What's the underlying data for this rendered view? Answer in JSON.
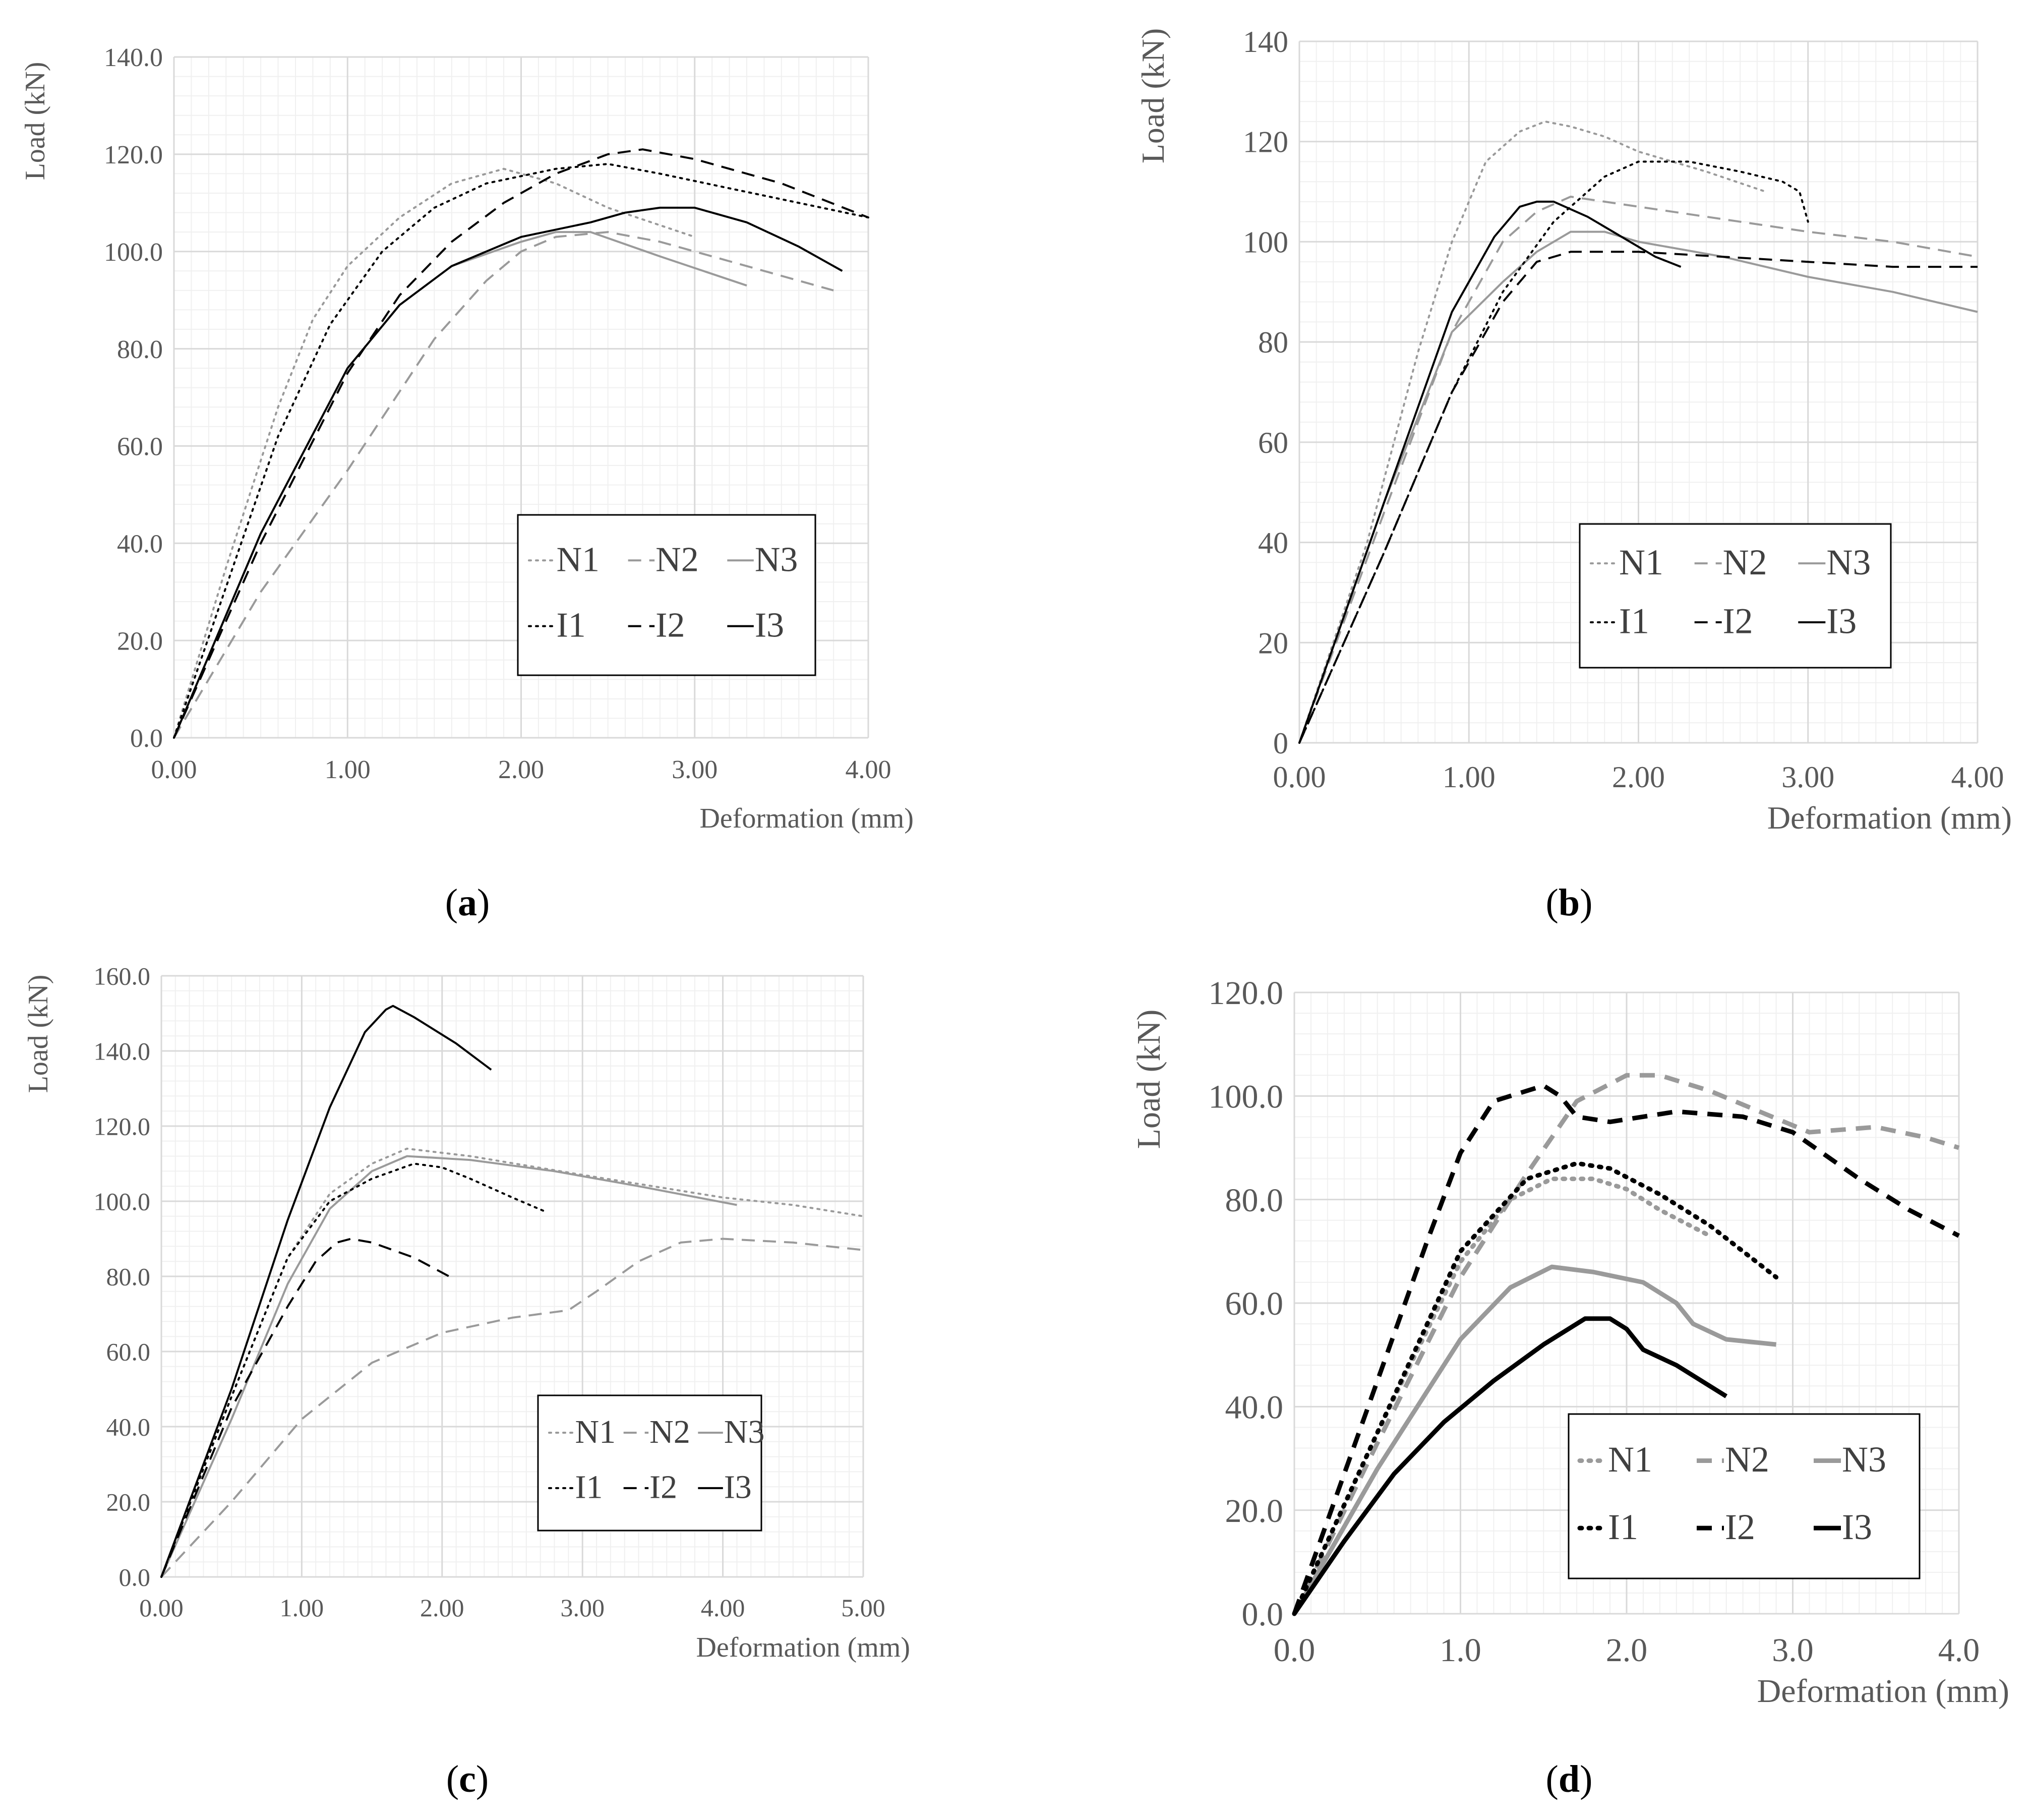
{
  "figure_labels": {
    "a": {
      "open": "(",
      "letter": "a",
      "close": ")"
    },
    "b": {
      "open": "(",
      "letter": "b",
      "close": ")"
    },
    "c": {
      "open": "(",
      "letter": "c",
      "close": ")"
    },
    "d": {
      "open": "(",
      "letter": "d",
      "close": ")"
    }
  },
  "colors": {
    "black": "#000000",
    "gray": "#9a9a9a",
    "axis": "#d9d9d9",
    "grid": "#f0f0f0",
    "text": "#595959"
  },
  "chart_data": [
    {
      "id": "a",
      "type": "line",
      "xlabel": "Deformation (mm)",
      "ylabel": "Load (kN)",
      "xlim": [
        0,
        4
      ],
      "ylim": [
        0,
        140
      ],
      "xticks": [
        0,
        1,
        2,
        3,
        4
      ],
      "xtick_labels": [
        "0.00",
        "1.00",
        "2.00",
        "3.00",
        "4.00"
      ],
      "yticks": [
        0,
        20,
        40,
        60,
        80,
        100,
        120,
        140
      ],
      "ytick_labels": [
        "0.0",
        "20.0",
        "40.0",
        "60.0",
        "80.0",
        "100.0",
        "120.0",
        "140.0"
      ],
      "legend_position": "lower-right",
      "series": [
        {
          "name": "N1",
          "style": "dotted",
          "color": "gray",
          "x": [
            0,
            0.3,
            0.6,
            0.8,
            1.0,
            1.3,
            1.6,
            1.9,
            2.0,
            2.2,
            2.5,
            3.0
          ],
          "y": [
            0,
            35,
            68,
            86,
            97,
            107,
            114,
            117,
            116,
            114,
            109,
            103
          ]
        },
        {
          "name": "N2",
          "style": "dashed",
          "color": "gray",
          "x": [
            0,
            0.5,
            1.0,
            1.5,
            1.8,
            2.0,
            2.2,
            2.5,
            2.8,
            3.2,
            3.8
          ],
          "y": [
            0,
            30,
            55,
            82,
            94,
            100,
            103,
            104,
            102,
            98,
            92
          ]
        },
        {
          "name": "N3",
          "style": "solid",
          "color": "gray",
          "x": [
            0,
            0.5,
            1.0,
            1.3,
            1.6,
            2.0,
            2.2,
            2.4,
            2.8,
            3.3
          ],
          "y": [
            0,
            42,
            76,
            89,
            97,
            102,
            104,
            104,
            99,
            93
          ]
        },
        {
          "name": "I1",
          "style": "dotted",
          "color": "black",
          "x": [
            0,
            0.3,
            0.6,
            0.9,
            1.2,
            1.5,
            1.8,
            2.2,
            2.5,
            2.8,
            3.2,
            3.6,
            4.0
          ],
          "y": [
            0,
            31,
            62,
            85,
            100,
            109,
            114,
            117,
            118,
            116,
            113,
            110,
            107
          ]
        },
        {
          "name": "I2",
          "style": "dashed",
          "color": "black",
          "x": [
            0,
            0.5,
            1.0,
            1.3,
            1.6,
            1.9,
            2.2,
            2.5,
            2.7,
            3.0,
            3.5,
            4.0
          ],
          "y": [
            0,
            40,
            75,
            91,
            102,
            110,
            116,
            120,
            121,
            119,
            114,
            107
          ]
        },
        {
          "name": "I3",
          "style": "solid",
          "color": "black",
          "x": [
            0,
            0.5,
            1.0,
            1.3,
            1.6,
            2.0,
            2.4,
            2.6,
            2.8,
            3.0,
            3.3,
            3.6,
            3.85
          ],
          "y": [
            0,
            42,
            76,
            89,
            97,
            103,
            106,
            108,
            109,
            109,
            106,
            101,
            96
          ]
        }
      ]
    },
    {
      "id": "b",
      "type": "line",
      "xlabel": "Deformation (mm)",
      "ylabel": "Load (kN)",
      "xlim": [
        0,
        4
      ],
      "ylim": [
        0,
        140
      ],
      "xticks": [
        0,
        1,
        2,
        3,
        4
      ],
      "xtick_labels": [
        "0.00",
        "1.00",
        "2.00",
        "3.00",
        "4.00"
      ],
      "yticks": [
        0,
        20,
        40,
        60,
        80,
        100,
        120,
        140
      ],
      "ytick_labels": [
        "0",
        "20",
        "40",
        "60",
        "80",
        "100",
        "120",
        "140"
      ],
      "legend_position": "lower-right",
      "series": [
        {
          "name": "N1",
          "style": "dotted",
          "color": "gray",
          "x": [
            0,
            0.4,
            0.7,
            0.9,
            1.1,
            1.3,
            1.45,
            1.6,
            1.8,
            2.0,
            2.4,
            2.75
          ],
          "y": [
            0,
            40,
            78,
            100,
            116,
            122,
            124,
            123,
            121,
            118,
            114,
            110
          ]
        },
        {
          "name": "N2",
          "style": "dashed",
          "color": "gray",
          "x": [
            0,
            0.5,
            0.9,
            1.2,
            1.4,
            1.6,
            1.8,
            2.2,
            2.6,
            3.0,
            3.5,
            4.0
          ],
          "y": [
            0,
            46,
            82,
            100,
            106,
            109,
            108,
            106,
            104,
            102,
            100,
            97
          ]
        },
        {
          "name": "N3",
          "style": "solid",
          "color": "gray",
          "x": [
            0,
            0.5,
            0.9,
            1.2,
            1.4,
            1.6,
            1.8,
            2.0,
            2.5,
            3.0,
            3.5,
            4.0
          ],
          "y": [
            0,
            48,
            82,
            92,
            98,
            102,
            102,
            100,
            97,
            93,
            90,
            86
          ]
        },
        {
          "name": "I1",
          "style": "dotted",
          "color": "black",
          "x": [
            0,
            0.5,
            0.9,
            1.2,
            1.5,
            1.8,
            2.0,
            2.3,
            2.6,
            2.85,
            2.95,
            3.0
          ],
          "y": [
            0,
            38,
            70,
            90,
            104,
            113,
            116,
            116,
            114,
            112,
            110,
            104
          ]
        },
        {
          "name": "I2",
          "style": "dashed",
          "color": "black",
          "x": [
            0,
            0.5,
            0.9,
            1.2,
            1.4,
            1.6,
            2.0,
            2.5,
            3.0,
            3.5,
            4.0
          ],
          "y": [
            0,
            38,
            70,
            88,
            96,
            98,
            98,
            97,
            96,
            95,
            95
          ]
        },
        {
          "name": "I3",
          "style": "solid",
          "color": "black",
          "x": [
            0,
            0.5,
            0.9,
            1.15,
            1.3,
            1.4,
            1.5,
            1.7,
            1.9,
            2.1,
            2.25
          ],
          "y": [
            0,
            48,
            86,
            101,
            107,
            108,
            108,
            105,
            101,
            97,
            95
          ]
        }
      ]
    },
    {
      "id": "c",
      "type": "line",
      "xlabel": "Deformation (mm)",
      "ylabel": "Load (kN)",
      "xlim": [
        0,
        5
      ],
      "ylim": [
        0,
        160
      ],
      "xticks": [
        0,
        1,
        2,
        3,
        4,
        5
      ],
      "xtick_labels": [
        "0.00",
        "1.00",
        "2.00",
        "3.00",
        "4.00",
        "5.00"
      ],
      "yticks": [
        0,
        20,
        40,
        60,
        80,
        100,
        120,
        140,
        160
      ],
      "ytick_labels": [
        "0.0",
        "20.0",
        "40.0",
        "60.0",
        "80.0",
        "100.0",
        "120.0",
        "140.0",
        "160.0"
      ],
      "legend_position": "lower-right",
      "series": [
        {
          "name": "N1",
          "style": "dotted",
          "color": "gray",
          "x": [
            0,
            0.5,
            0.9,
            1.2,
            1.5,
            1.75,
            2.2,
            3.0,
            3.5,
            4.0,
            4.5,
            5.0
          ],
          "y": [
            0,
            48,
            85,
            102,
            110,
            114,
            112,
            107,
            104,
            101,
            99,
            96
          ]
        },
        {
          "name": "N2",
          "style": "dashed",
          "color": "gray",
          "x": [
            0,
            0.5,
            1.0,
            1.5,
            2.0,
            2.5,
            2.9,
            3.1,
            3.4,
            3.7,
            4.0,
            4.5,
            5.0
          ],
          "y": [
            0,
            20,
            42,
            57,
            65,
            69,
            71,
            76,
            84,
            89,
            90,
            89,
            87
          ]
        },
        {
          "name": "N3",
          "style": "solid",
          "color": "gray",
          "x": [
            0,
            0.5,
            0.9,
            1.2,
            1.5,
            1.75,
            2.2,
            2.8,
            3.4,
            4.1
          ],
          "y": [
            0,
            42,
            78,
            98,
            108,
            112,
            111,
            108,
            104,
            99
          ]
        },
        {
          "name": "I1",
          "style": "dotted",
          "color": "black",
          "x": [
            0,
            0.5,
            0.9,
            1.2,
            1.5,
            1.8,
            2.0,
            2.2,
            2.5,
            2.75
          ],
          "y": [
            0,
            48,
            85,
            100,
            106,
            110,
            109,
            106,
            101,
            97
          ]
        },
        {
          "name": "I2",
          "style": "dashed",
          "color": "black",
          "x": [
            0,
            0.5,
            0.9,
            1.1,
            1.25,
            1.35,
            1.5,
            1.8,
            2.05
          ],
          "y": [
            0,
            45,
            72,
            84,
            89,
            90,
            89,
            85,
            80
          ]
        },
        {
          "name": "I3",
          "style": "solid",
          "color": "black",
          "x": [
            0,
            0.5,
            0.9,
            1.2,
            1.45,
            1.6,
            1.65,
            1.8,
            2.1,
            2.35
          ],
          "y": [
            0,
            50,
            95,
            125,
            145,
            151,
            152,
            149,
            142,
            135
          ]
        }
      ]
    },
    {
      "id": "d",
      "type": "line",
      "xlabel": "Deformation (mm)",
      "ylabel": "Load (kN)",
      "xlim": [
        0,
        4
      ],
      "ylim": [
        0,
        120
      ],
      "xticks": [
        0,
        1,
        2,
        3,
        4
      ],
      "xtick_labels": [
        "0.0",
        "1.0",
        "2.0",
        "3.0",
        "4.0"
      ],
      "yticks": [
        0,
        20,
        40,
        60,
        80,
        100,
        120
      ],
      "ytick_labels": [
        "0.0",
        "20.0",
        "40.0",
        "60.0",
        "80.0",
        "100.0",
        "120.0"
      ],
      "legend_position": "lower-right",
      "series": [
        {
          "name": "N1",
          "style": "dotted",
          "color": "gray",
          "x": [
            0,
            0.5,
            1.0,
            1.3,
            1.55,
            1.8,
            2.0,
            2.2,
            2.5
          ],
          "y": [
            0,
            35,
            68,
            80,
            84,
            84,
            82,
            78,
            73
          ]
        },
        {
          "name": "N2",
          "style": "dashed",
          "color": "gray",
          "x": [
            0,
            0.5,
            1.0,
            1.4,
            1.7,
            2.0,
            2.2,
            2.5,
            2.8,
            3.1,
            3.5,
            3.8,
            4.0
          ],
          "y": [
            0,
            33,
            65,
            85,
            99,
            104,
            104,
            101,
            97,
            93,
            94,
            92,
            90
          ]
        },
        {
          "name": "N3",
          "style": "solid",
          "color": "gray",
          "x": [
            0,
            0.5,
            1.0,
            1.3,
            1.55,
            1.8,
            2.1,
            2.3,
            2.4,
            2.6,
            2.9
          ],
          "y": [
            0,
            28,
            53,
            63,
            67,
            66,
            64,
            60,
            56,
            53,
            52
          ]
        },
        {
          "name": "I1",
          "style": "dotted",
          "color": "black",
          "x": [
            0,
            0.5,
            1.0,
            1.4,
            1.7,
            1.9,
            2.2,
            2.5,
            2.9
          ],
          "y": [
            0,
            35,
            70,
            84,
            87,
            86,
            81,
            75,
            65
          ]
        },
        {
          "name": "I2",
          "style": "dashed",
          "color": "black",
          "x": [
            0,
            0.5,
            0.8,
            1.0,
            1.2,
            1.5,
            1.6,
            1.7,
            1.9,
            2.3,
            2.7,
            3.0,
            3.4,
            3.7,
            4.0
          ],
          "y": [
            0,
            45,
            72,
            89,
            99,
            102,
            100,
            96,
            95,
            97,
            96,
            93,
            84,
            78,
            73
          ]
        },
        {
          "name": "I3",
          "style": "solid",
          "color": "black",
          "x": [
            0,
            0.3,
            0.6,
            0.9,
            1.2,
            1.5,
            1.75,
            1.9,
            2.0,
            2.1,
            2.3,
            2.5,
            2.6
          ],
          "y": [
            0,
            14,
            27,
            37,
            45,
            52,
            57,
            57,
            55,
            51,
            48,
            44,
            42
          ]
        }
      ]
    }
  ]
}
